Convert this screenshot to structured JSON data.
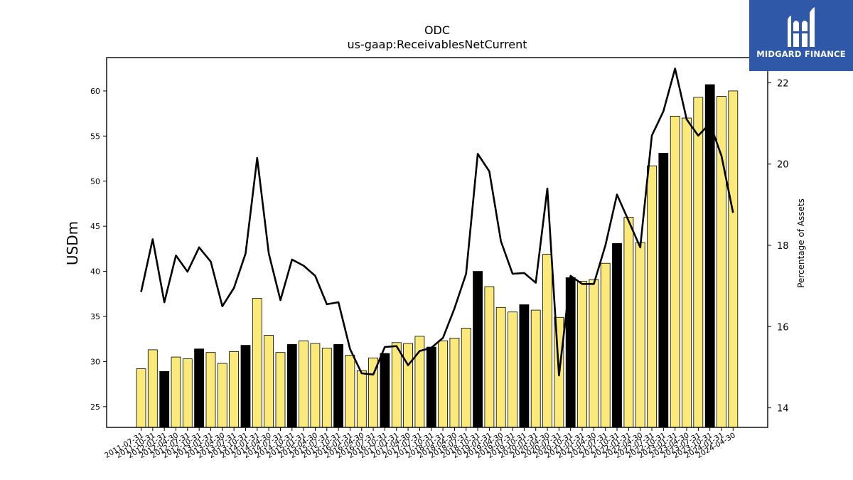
{
  "brand": {
    "name": "MIDGARD FINANCE",
    "color": "#2f58a8"
  },
  "chart_data": {
    "type": "bar",
    "title": "ODC",
    "subtitle": "us-gaap:ReceivablesNetCurrent",
    "ylabel": "USDm",
    "y2label": "Percentage of Assets",
    "ylim": [
      22.7,
      63.7
    ],
    "y2lim": [
      13.52,
      22.62
    ],
    "yticks": [
      25,
      30,
      35,
      40,
      45,
      50,
      55,
      60
    ],
    "y2ticks": [
      14,
      16,
      18,
      20,
      22
    ],
    "colors": {
      "quarter_bar": "#fbe97a",
      "fiscal_year_bar": "#000000",
      "line": "#000000"
    },
    "categories": [
      "2011-07-31",
      "2011-10-31",
      "2012-01-31",
      "2012-04-30",
      "2012-07-31",
      "2012-10-31",
      "2013-01-31",
      "2013-04-30",
      "2013-07-31",
      "2013-10-31",
      "2014-01-31",
      "2014-04-30",
      "2014-07-31",
      "2014-10-31",
      "2015-01-31",
      "2015-04-30",
      "2015-07-31",
      "2015-10-31",
      "2016-01-31",
      "2016-04-30",
      "2016-07-31",
      "2016-10-31",
      "2017-01-31",
      "2017-04-30",
      "2017-07-31",
      "2017-10-31",
      "2018-01-31",
      "2018-04-30",
      "2018-07-31",
      "2018-10-31",
      "2019-01-31",
      "2019-04-30",
      "2019-07-31",
      "2019-10-31",
      "2020-01-31",
      "2020-04-30",
      "2020-07-31",
      "2020-10-31",
      "2021-01-31",
      "2021-04-30",
      "2021-07-31",
      "2021-10-31",
      "2022-01-31",
      "2022-04-30",
      "2022-07-31",
      "2022-10-31",
      "2023-01-31",
      "2023-04-30",
      "2023-07-31",
      "2023-10-31",
      "2024-01-31",
      "2024-04-30"
    ],
    "fiscal_year_end_flags": [
      false,
      false,
      true,
      false,
      false,
      true,
      false,
      false,
      false,
      true,
      false,
      false,
      false,
      true,
      false,
      false,
      false,
      true,
      false,
      false,
      false,
      true,
      false,
      false,
      false,
      true,
      false,
      false,
      false,
      true,
      false,
      false,
      false,
      true,
      false,
      false,
      false,
      true,
      false,
      false,
      false,
      true,
      false,
      false,
      false,
      true,
      false,
      false,
      false,
      true,
      false,
      false
    ],
    "series": [
      {
        "name": "",
        "type": "bar",
        "axis": "left",
        "values": [
          29.2,
          31.3,
          28.9,
          30.5,
          30.3,
          31.4,
          31.0,
          29.8,
          31.1,
          31.8,
          37.0,
          32.9,
          31.0,
          31.9,
          32.3,
          32.0,
          31.5,
          31.9,
          30.7,
          29.0,
          30.4,
          30.9,
          32.1,
          32.0,
          32.8,
          31.6,
          32.3,
          32.6,
          33.7,
          40.0,
          38.3,
          36.0,
          35.5,
          36.3,
          35.7,
          41.9,
          34.9,
          39.3,
          38.9,
          39.1,
          40.9,
          43.1,
          46.0,
          43.2,
          51.7,
          53.1,
          57.2,
          57.0,
          59.3,
          60.7,
          59.4,
          60.0
        ]
      },
      {
        "name": "",
        "type": "line",
        "axis": "right",
        "values": [
          16.85,
          18.15,
          16.6,
          17.75,
          17.35,
          17.95,
          17.6,
          16.5,
          16.95,
          17.8,
          20.15,
          17.8,
          16.65,
          17.65,
          17.5,
          17.25,
          16.55,
          16.6,
          15.45,
          14.85,
          14.82,
          15.5,
          15.52,
          15.05,
          15.4,
          15.48,
          15.72,
          16.45,
          17.3,
          20.25,
          19.82,
          18.1,
          17.3,
          17.32,
          17.08,
          19.4,
          14.8,
          17.25,
          17.05,
          17.05,
          18.0,
          19.25,
          18.6,
          17.95,
          20.7,
          21.3,
          22.35,
          21.1,
          20.7,
          21.0,
          20.2,
          18.8
        ]
      }
    ]
  }
}
